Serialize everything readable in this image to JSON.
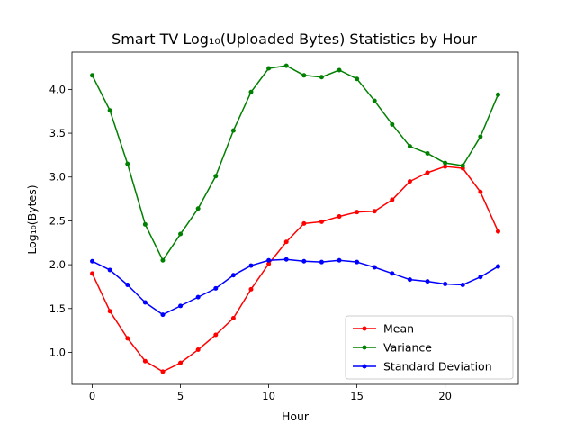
{
  "chart_data": {
    "type": "line",
    "title": "Smart TV Log₁₀(Uploaded Bytes) Statistics by Hour",
    "xlabel": "Hour",
    "ylabel": "Log₁₀(Bytes)",
    "xlim": [
      -1.15,
      24.15
    ],
    "ylim": [
      0.635,
      4.425
    ],
    "xticks": [
      0,
      5,
      10,
      15,
      20
    ],
    "xtick_labels": [
      "0",
      "5",
      "10",
      "15",
      "20"
    ],
    "yticks": [
      1.0,
      1.5,
      2.0,
      2.5,
      3.0,
      3.5,
      4.0
    ],
    "ytick_labels": [
      "1.0",
      "1.5",
      "2.0",
      "2.5",
      "3.0",
      "3.5",
      "4.0"
    ],
    "grid": false,
    "legend_position": "lower-right",
    "x": [
      0,
      1,
      2,
      3,
      4,
      5,
      6,
      7,
      8,
      9,
      10,
      11,
      12,
      13,
      14,
      15,
      16,
      17,
      18,
      19,
      20,
      21,
      22,
      23
    ],
    "series": [
      {
        "name": "Mean",
        "color": "#ff0000",
        "values": [
          1.9,
          1.47,
          1.16,
          0.9,
          0.78,
          0.88,
          1.03,
          1.2,
          1.39,
          1.72,
          2.01,
          2.26,
          2.47,
          2.49,
          2.55,
          2.6,
          2.61,
          2.74,
          2.95,
          3.05,
          3.12,
          3.1,
          2.83,
          2.38
        ]
      },
      {
        "name": "Variance",
        "color": "#008000",
        "values": [
          4.16,
          3.76,
          3.15,
          2.46,
          2.05,
          2.35,
          2.64,
          3.01,
          3.53,
          3.97,
          4.24,
          4.27,
          4.16,
          4.14,
          4.22,
          4.12,
          3.87,
          3.6,
          3.35,
          3.27,
          3.16,
          3.13,
          3.46,
          3.94
        ]
      },
      {
        "name": "Standard Deviation",
        "color": "#0000ff",
        "values": [
          2.04,
          1.94,
          1.77,
          1.57,
          1.43,
          1.53,
          1.63,
          1.73,
          1.88,
          1.99,
          2.05,
          2.06,
          2.04,
          2.03,
          2.05,
          2.03,
          1.97,
          1.9,
          1.83,
          1.81,
          1.78,
          1.77,
          1.86,
          1.98
        ]
      }
    ]
  }
}
